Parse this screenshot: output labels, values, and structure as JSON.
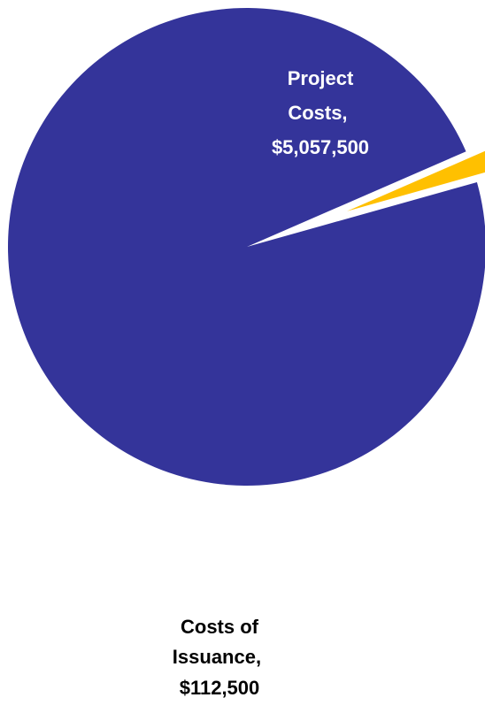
{
  "chart_data": {
    "type": "pie",
    "title": "",
    "slices": [
      {
        "label": "Project Costs",
        "value": 5057500,
        "value_text": "$5,057,500",
        "color": "#34349a",
        "label_color": "#ffffff",
        "exploded": false
      },
      {
        "label": "Costs of Issuance",
        "value": 112500,
        "value_text": "$112,500",
        "color": "#ffc000",
        "label_color": "#000000",
        "exploded": true
      }
    ],
    "legend": "none",
    "data_labels": "category name and value"
  }
}
